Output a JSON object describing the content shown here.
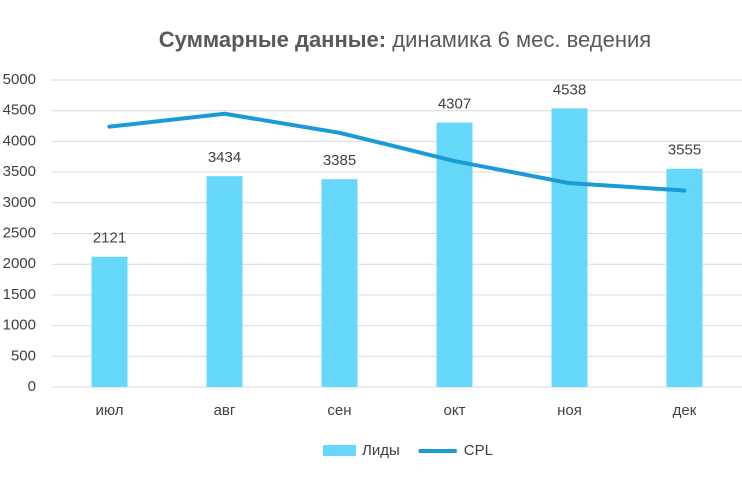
{
  "chart_data": {
    "type": "combo",
    "title": [
      "Суммарные данные:",
      "динамика 6 мес. ведения"
    ],
    "categories": [
      "июл",
      "авг",
      "сен",
      "окт",
      "ноя",
      "дек"
    ],
    "series": [
      {
        "name": "Лиды",
        "type": "bar",
        "color": "#66d8fa",
        "values": [
          2121,
          3434,
          3385,
          4307,
          4538,
          3555
        ],
        "data_labels": true
      },
      {
        "name": "CPL",
        "type": "line",
        "color": "#1a9ad6",
        "values": [
          4240,
          4450,
          4140,
          3680,
          3320,
          3200
        ]
      }
    ],
    "ylim": [
      0,
      5000
    ],
    "yticks": [
      0,
      500,
      1000,
      1500,
      2000,
      2500,
      3000,
      3500,
      4000,
      4500,
      5000
    ],
    "grid": true,
    "legend": "bottom"
  }
}
